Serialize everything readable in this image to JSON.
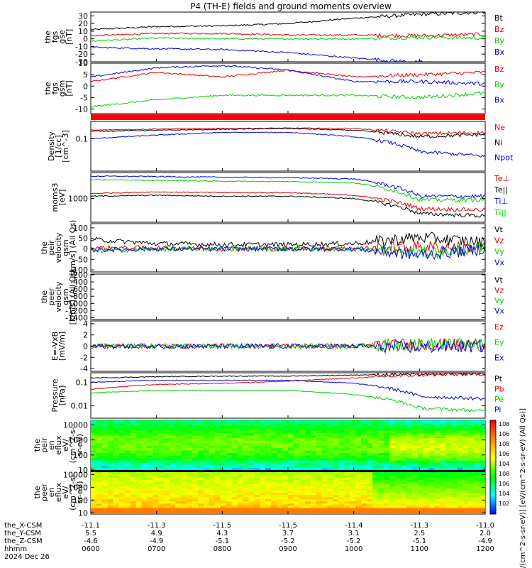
{
  "title": "P4 (TH-E) fields and ground moments overview",
  "colors": {
    "black": "#000000",
    "red": "#e00000",
    "green": "#00d000",
    "blue": "#0000e0"
  },
  "footer": {
    "rows": [
      {
        "label": "the_X-CSM",
        "values": [
          "-11.1",
          "-11.3",
          "-11.5",
          "-11.5",
          "-11.4",
          "-11.3",
          "-11.0"
        ]
      },
      {
        "label": "the_Y-CSM",
        "values": [
          "5.5",
          "4.9",
          "4.3",
          "3.7",
          "3.1",
          "2.5",
          "2.0"
        ]
      },
      {
        "label": "the_Z-CSM",
        "values": [
          "-4.6",
          "-4.9",
          "-5.1",
          "-5.2",
          "-5.2",
          "-5.1",
          "-4.9"
        ]
      },
      {
        "label": "hhmm",
        "values": [
          "0600",
          "0700",
          "0800",
          "0900",
          "1000",
          "1100",
          "1200"
        ]
      }
    ],
    "date": "2024 Dec 26"
  },
  "chart_data": [
    {
      "type": "line",
      "id": "fgs_gse",
      "ylabel": [
        "the",
        "fgs",
        "gse",
        "[nT]"
      ],
      "ylim": [
        -30,
        35
      ],
      "yticks": [
        -30,
        -20,
        -10,
        0,
        10,
        20,
        30
      ],
      "x": [
        "0600",
        "0700",
        "0800",
        "0900",
        "1000",
        "1100",
        "1200"
      ],
      "series": [
        {
          "name": "Bt",
          "color": "black",
          "values": [
            12,
            16,
            17,
            20,
            27,
            32,
            35
          ]
        },
        {
          "name": "Bz",
          "color": "red",
          "values": [
            4,
            7,
            7,
            5,
            5,
            4,
            6
          ]
        },
        {
          "name": "By",
          "color": "green",
          "values": [
            -3,
            1,
            0,
            0,
            0,
            2,
            1
          ]
        },
        {
          "name": "Bx",
          "color": "blue",
          "values": [
            -11,
            -13,
            -14,
            -18,
            -25,
            -31,
            -34
          ]
        }
      ]
    },
    {
      "type": "line",
      "id": "fgs_gsm",
      "ylabel": [
        "the",
        "fgs",
        "gsm",
        "[nT]"
      ],
      "ylim": [
        -12,
        10
      ],
      "yticks": [
        -10,
        -5,
        0,
        5,
        10
      ],
      "x": [
        "0600",
        "0700",
        "0800",
        "0900",
        "1000",
        "1100",
        "1200"
      ],
      "series": [
        {
          "name": "Bz",
          "color": "red",
          "values": [
            2,
            6,
            4,
            7,
            4,
            5,
            6
          ]
        },
        {
          "name": "By",
          "color": "green",
          "values": [
            -9,
            -6,
            -4,
            -4,
            -4,
            -5,
            -3
          ]
        },
        {
          "name": "Bx",
          "color": "blue",
          "values": [
            4,
            8,
            9,
            7,
            2,
            2,
            1
          ]
        }
      ]
    },
    {
      "type": "line",
      "id": "density",
      "ylabel": [
        "Density",
        "[1/cc]",
        "[cm^-3]"
      ],
      "ylim": [
        0.005,
        0.5
      ],
      "yticks": [
        0.1
      ],
      "yscale": "log",
      "x": [
        "0600",
        "0700",
        "0800",
        "0900",
        "1000",
        "1100",
        "1200"
      ],
      "series": [
        {
          "name": "Ne",
          "color": "red",
          "values": [
            0.22,
            0.25,
            0.26,
            0.27,
            0.26,
            0.16,
            0.18
          ]
        },
        {
          "name": "Ni",
          "color": "black",
          "values": [
            0.2,
            0.22,
            0.24,
            0.26,
            0.22,
            0.12,
            0.15
          ]
        },
        {
          "name": "Npot",
          "color": "blue",
          "values": [
            0.1,
            0.14,
            0.18,
            0.18,
            0.12,
            0.03,
            0.02
          ]
        }
      ]
    },
    {
      "type": "line",
      "id": "temperature",
      "ylabel": [
        "moms3",
        "[eV]"
      ],
      "ylim": [
        150,
        8000
      ],
      "yticks": [
        1000
      ],
      "yscale": "log",
      "x": [
        "0600",
        "0700",
        "0800",
        "0900",
        "1000",
        "1100",
        "1200"
      ],
      "series": [
        {
          "name": "Te⊥",
          "color": "red",
          "values": [
            1500,
            1700,
            1600,
            1600,
            1300,
            450,
            400
          ]
        },
        {
          "name": "Te||",
          "color": "black",
          "values": [
            1200,
            1300,
            1200,
            1200,
            1000,
            300,
            250
          ]
        },
        {
          "name": "Ti⊥",
          "color": "blue",
          "values": [
            6000,
            5800,
            5500,
            5300,
            4800,
            1200,
            1200
          ]
        },
        {
          "name": "Ti||",
          "color": "green",
          "values": [
            4500,
            4300,
            4000,
            3900,
            3500,
            900,
            900
          ]
        }
      ]
    },
    {
      "type": "line",
      "id": "peir_velocity",
      "ylabel": [
        "the",
        "peir",
        "velocity",
        "gsm",
        "[km/s] (All Qs)"
      ],
      "ylim": [
        -110,
        120
      ],
      "yticks": [
        -100,
        -50,
        0,
        50,
        100
      ],
      "x": [
        "0600",
        "0700",
        "0800",
        "0900",
        "1000",
        "1100",
        "1200"
      ],
      "series": [
        {
          "name": "Vt",
          "color": "black",
          "values": [
            45,
            25,
            20,
            20,
            25,
            55,
            30
          ]
        },
        {
          "name": "Vz",
          "color": "red",
          "values": [
            5,
            3,
            0,
            0,
            2,
            10,
            5
          ]
        },
        {
          "name": "Vy",
          "color": "green",
          "values": [
            -10,
            0,
            0,
            0,
            0,
            -20,
            0
          ]
        },
        {
          "name": "Vx",
          "color": "blue",
          "values": [
            -5,
            0,
            0,
            0,
            0,
            -30,
            0
          ]
        }
      ]
    },
    {
      "type": "line",
      "id": "peer_velocity",
      "ylabel": [
        "the",
        "peer",
        "velocity",
        "gsm",
        "[km/s] (All Qs)"
      ],
      "ylim": [
        -1450,
        -180
      ],
      "yticks": [
        -200,
        -400,
        -600,
        -800,
        -1000,
        -1200,
        -1400
      ],
      "legend": [
        "Vt",
        "Vz",
        "Vy",
        "Vx"
      ],
      "legend_colors": [
        "black",
        "red",
        "green",
        "blue"
      ]
    },
    {
      "type": "line",
      "id": "efield",
      "ylabel": [
        "E=-VxB",
        "[mV/m]"
      ],
      "ylim": [
        -4.5,
        4.5
      ],
      "yticks": [
        -4,
        -2,
        0,
        2,
        4
      ],
      "x": [
        "0600",
        "0700",
        "0800",
        "0900",
        "1000",
        "1100",
        "1200"
      ],
      "series": [
        {
          "name": "Ez",
          "color": "red",
          "values": [
            0,
            0,
            0,
            0,
            0,
            0.3,
            0.2
          ]
        },
        {
          "name": "Ey",
          "color": "green",
          "values": [
            0,
            0,
            0,
            0,
            0,
            0.4,
            0.3
          ]
        },
        {
          "name": "Ex",
          "color": "blue",
          "values": [
            0,
            0,
            0,
            0,
            0,
            -0.2,
            0
          ]
        }
      ]
    },
    {
      "type": "line",
      "id": "pressure",
      "ylabel": [
        "Pressure",
        "[nPa]"
      ],
      "ylim": [
        0.003,
        0.25
      ],
      "yticks": [
        0.01,
        0.1
      ],
      "yscale": "log",
      "x": [
        "0600",
        "0700",
        "0800",
        "0900",
        "1000",
        "1100",
        "1200"
      ],
      "series": [
        {
          "name": "Pt",
          "color": "black",
          "values": [
            0.15,
            0.17,
            0.18,
            0.18,
            0.2,
            0.22,
            0.23
          ]
        },
        {
          "name": "Pb",
          "color": "red",
          "values": [
            0.05,
            0.08,
            0.09,
            0.11,
            0.15,
            0.2,
            0.22
          ]
        },
        {
          "name": "Pe",
          "color": "green",
          "values": [
            0.035,
            0.045,
            0.045,
            0.045,
            0.03,
            0.008,
            0.006
          ]
        },
        {
          "name": "Pi",
          "color": "blue",
          "values": [
            0.1,
            0.12,
            0.12,
            0.12,
            0.09,
            0.025,
            0.02
          ]
        }
      ]
    },
    {
      "type": "heatmap",
      "id": "peir_spec",
      "ylabel": [
        "the",
        "peir",
        "en",
        "eflux",
        "eV/",
        "(cm^2-s-",
        "sr-eV)"
      ],
      "ylim": [
        10,
        20000
      ],
      "yticks": [
        10,
        100,
        1000,
        10000
      ],
      "yscale": "log"
    },
    {
      "type": "heatmap",
      "id": "peer_spec",
      "ylabel": [
        "the",
        "peer",
        "en",
        "eflux",
        "eV/",
        "(cm^2-s-",
        "sr-eV)"
      ],
      "ylim": [
        8,
        20000
      ],
      "yticks": [
        10,
        100,
        1000,
        10000
      ],
      "yscale": "log"
    }
  ],
  "colorbar": {
    "ticks": [
      "10^2",
      "10^4",
      "10^6",
      "10^8",
      "10^4",
      "10^6",
      "10^8",
      "10^6",
      "10^8"
    ],
    "label": "[eV/(cm^2-s-sr-eV)]  [eV/(cm^2-s-sr-eV) (All Qs)]"
  }
}
